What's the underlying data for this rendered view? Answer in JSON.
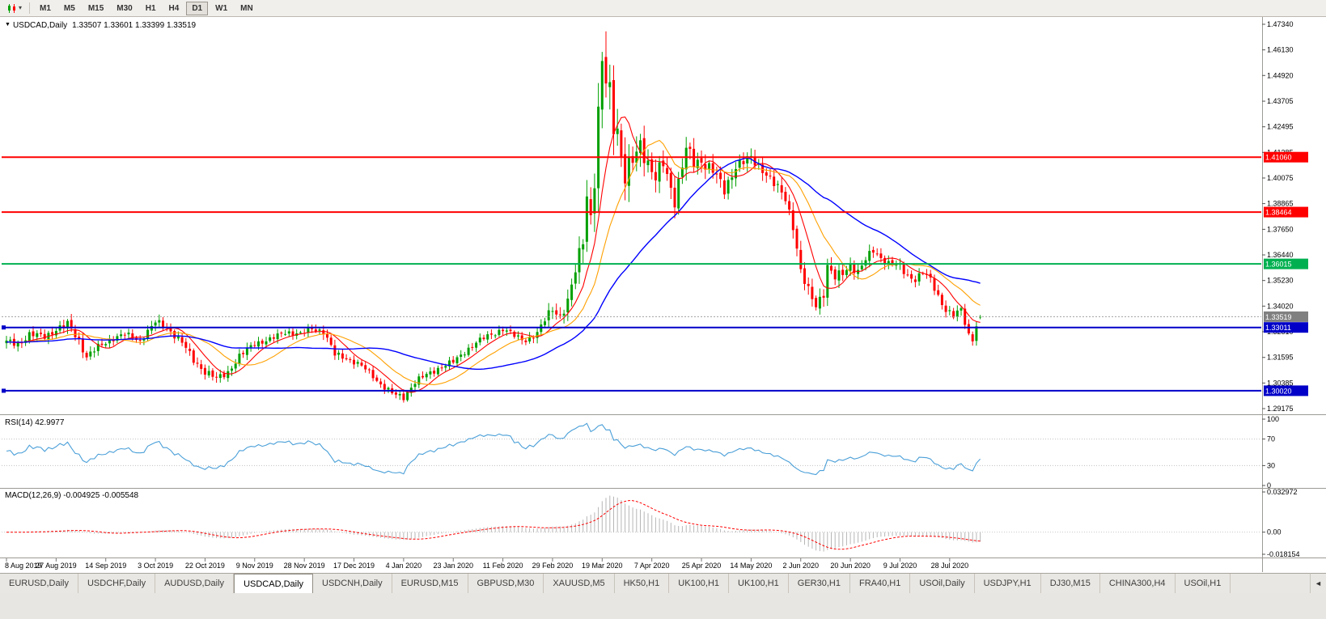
{
  "toolbar": {
    "timeframes": [
      "M1",
      "M5",
      "M15",
      "M30",
      "H1",
      "H4",
      "D1",
      "W1",
      "MN"
    ],
    "active_timeframe": "D1"
  },
  "chart_data": {
    "type": "candlestick",
    "symbol": "USDCAD",
    "timeframe": "Daily",
    "title_symbol": "USDCAD,Daily",
    "title_ohlc": "1.33507 1.33601 1.33399 1.33519",
    "candle_count": 256,
    "last_candle": [
      1.33507,
      1.33601,
      1.33399,
      1.33519
    ],
    "anchors": [
      [
        0,
        1.3232,
        0.0042
      ],
      [
        3,
        1.3222,
        0.004
      ],
      [
        6,
        1.3268,
        0.004
      ],
      [
        10,
        1.3258,
        0.0038
      ],
      [
        13,
        1.3292,
        0.0042
      ],
      [
        16,
        1.3315,
        0.0046
      ],
      [
        19,
        1.3242,
        0.0048
      ],
      [
        21,
        1.3162,
        0.0044
      ],
      [
        24,
        1.3208,
        0.0038
      ],
      [
        28,
        1.3252,
        0.0036
      ],
      [
        31,
        1.3268,
        0.0034
      ],
      [
        35,
        1.324,
        0.0036
      ],
      [
        39,
        1.3325,
        0.0044
      ],
      [
        42,
        1.3302,
        0.004
      ],
      [
        46,
        1.3228,
        0.004
      ],
      [
        49,
        1.3148,
        0.0042
      ],
      [
        52,
        1.3092,
        0.0042
      ],
      [
        55,
        1.3058,
        0.004
      ],
      [
        58,
        1.3092,
        0.004
      ],
      [
        61,
        1.3162,
        0.004
      ],
      [
        65,
        1.3228,
        0.0038
      ],
      [
        69,
        1.3242,
        0.0034
      ],
      [
        73,
        1.3282,
        0.0034
      ],
      [
        77,
        1.3268,
        0.0032
      ],
      [
        80,
        1.3298,
        0.0036
      ],
      [
        83,
        1.3282,
        0.004
      ],
      [
        86,
        1.3172,
        0.0042
      ],
      [
        89,
        1.3158,
        0.0034
      ],
      [
        92,
        1.3128,
        0.0032
      ],
      [
        95,
        1.3092,
        0.003
      ],
      [
        98,
        1.3032,
        0.0032
      ],
      [
        101,
        1.2988,
        0.0034
      ],
      [
        104,
        1.2972,
        0.0034
      ],
      [
        107,
        1.3042,
        0.0036
      ],
      [
        110,
        1.3078,
        0.0034
      ],
      [
        113,
        1.3108,
        0.0032
      ],
      [
        117,
        1.3138,
        0.0032
      ],
      [
        120,
        1.3188,
        0.0034
      ],
      [
        123,
        1.3228,
        0.0032
      ],
      [
        126,
        1.3262,
        0.0032
      ],
      [
        130,
        1.3292,
        0.0034
      ],
      [
        133,
        1.3262,
        0.0032
      ],
      [
        136,
        1.3242,
        0.0034
      ],
      [
        139,
        1.3268,
        0.0042
      ],
      [
        141,
        1.3338,
        0.0052
      ],
      [
        143,
        1.3398,
        0.0058
      ],
      [
        145,
        1.3352,
        0.0062
      ],
      [
        147,
        1.3412,
        0.0068
      ],
      [
        149,
        1.3572,
        0.0085
      ],
      [
        151,
        1.3738,
        0.0105
      ],
      [
        152,
        1.3932,
        0.0125
      ],
      [
        153,
        1.3818,
        0.0135
      ],
      [
        154,
        1.3988,
        0.015
      ],
      [
        155,
        1.4262,
        0.0185
      ],
      [
        156,
        1.4552,
        0.0235
      ],
      [
        157,
        1.4468,
        0.02
      ],
      [
        158,
        1.4432,
        0.018
      ],
      [
        159,
        1.4292,
        0.0165
      ],
      [
        160,
        1.4238,
        0.015
      ],
      [
        161,
        1.4102,
        0.014
      ],
      [
        162,
        1.3998,
        0.0135
      ],
      [
        164,
        1.4088,
        0.012
      ],
      [
        166,
        1.4178,
        0.011
      ],
      [
        168,
        1.4078,
        0.01
      ],
      [
        170,
        1.3998,
        0.0095
      ],
      [
        172,
        1.4078,
        0.009
      ],
      [
        175,
        1.3908,
        0.0088
      ],
      [
        178,
        1.4142,
        0.0088
      ],
      [
        180,
        1.4078,
        0.0082
      ],
      [
        182,
        1.4092,
        0.0078
      ],
      [
        185,
        1.4042,
        0.0072
      ],
      [
        188,
        1.3948,
        0.007
      ],
      [
        191,
        1.4068,
        0.0068
      ],
      [
        195,
        1.4098,
        0.0064
      ],
      [
        198,
        1.4052,
        0.006
      ],
      [
        201,
        1.3978,
        0.0058
      ],
      [
        204,
        1.3912,
        0.006
      ],
      [
        206,
        1.3788,
        0.0064
      ],
      [
        208,
        1.3562,
        0.007
      ],
      [
        210,
        1.3468,
        0.0066
      ],
      [
        212,
        1.3408,
        0.0062
      ],
      [
        214,
        1.3472,
        0.0068
      ],
      [
        215,
        1.3588,
        0.0072
      ],
      [
        217,
        1.3532,
        0.006
      ],
      [
        219,
        1.3558,
        0.0054
      ],
      [
        221,
        1.3598,
        0.0052
      ],
      [
        223,
        1.3562,
        0.0048
      ],
      [
        225,
        1.3618,
        0.0048
      ],
      [
        227,
        1.3668,
        0.0048
      ],
      [
        229,
        1.3632,
        0.0044
      ],
      [
        231,
        1.3602,
        0.0042
      ],
      [
        234,
        1.3588,
        0.0042
      ],
      [
        236,
        1.3548,
        0.0042
      ],
      [
        238,
        1.3528,
        0.004
      ],
      [
        240,
        1.3558,
        0.004
      ],
      [
        242,
        1.3528,
        0.004
      ],
      [
        244,
        1.3452,
        0.0042
      ],
      [
        246,
        1.3382,
        0.0042
      ],
      [
        248,
        1.3352,
        0.004
      ],
      [
        250,
        1.3388,
        0.0038
      ],
      [
        252,
        1.3268,
        0.0042
      ],
      [
        253,
        1.3248,
        0.004
      ],
      [
        254,
        1.3308,
        0.0036
      ],
      [
        255,
        1.3352,
        0.002
      ]
    ],
    "dates": [
      "8 Aug 2019",
      "27 Aug 2019",
      "14 Sep 2019",
      "3 Oct 2019",
      "22 Oct 2019",
      "9 Nov 2019",
      "28 Nov 2019",
      "17 Dec 2019",
      "4 Jan 2020",
      "23 Jan 2020",
      "11 Feb 2020",
      "29 Feb 2020",
      "19 Mar 2020",
      "7 Apr 2020",
      "25 Apr 2020",
      "14 May 2020",
      "2 Jun 2020",
      "20 Jun 2020",
      "9 Jul 2020",
      "28 Jul 2020"
    ],
    "date_step": 13,
    "price_scale_labels": [
      "1.47340",
      "1.46130",
      "1.44920",
      "1.43705",
      "1.42495",
      "1.41285",
      "1.40075",
      "1.38865",
      "1.37650",
      "1.36440",
      "1.35230",
      "1.34020",
      "1.32810",
      "1.31595",
      "1.30385",
      "1.29175"
    ],
    "price_scale_top": 1.4734,
    "price_scale_bottom": 1.29175,
    "levels": [
      {
        "price": 1.4106,
        "label": "1.41060",
        "color": "#ff0000",
        "width": 2,
        "handles": false
      },
      {
        "price": 1.38464,
        "label": "1.38464",
        "color": "#ff0000",
        "width": 2,
        "handles": false
      },
      {
        "price": 1.36015,
        "label": "1.36015",
        "color": "#00b050",
        "width": 2,
        "handles": false
      },
      {
        "price": 1.33011,
        "label": "1.33011",
        "color": "#0000c8",
        "width": 2,
        "handles": true
      },
      {
        "price": 1.3002,
        "label": "1.30020",
        "color": "#0000c8",
        "width": 2,
        "handles": true
      }
    ],
    "current_price": {
      "value": 1.33519,
      "label": "1.33519",
      "tag_color": "#808080"
    },
    "ma_periods": [
      8,
      17,
      40
    ],
    "colors": {
      "up": "#00a000",
      "down": "#ff0000",
      "ma_fast": "#ff0000",
      "ma_mid": "#ffa000",
      "ma_slow": "#0000ff",
      "rsi": "#4a9fd8",
      "macd_hist": "#b6b6b6",
      "macd_signal": "#ff0000"
    },
    "indicators": {
      "rsi": {
        "label": "RSI(14) 42.9977",
        "period": 14,
        "levels": [
          "100",
          "70",
          "30",
          "0"
        ],
        "guides": [
          70,
          30
        ]
      },
      "macd": {
        "label": "MACD(12,26,9) -0.004925 -0.005548",
        "scale": [
          "0.032972",
          "0.00",
          "-0.018154"
        ],
        "max": 0.032972,
        "min": -0.018154
      }
    }
  },
  "tabs": {
    "items": [
      "EURUSD,Daily",
      "USDCHF,Daily",
      "AUDUSD,Daily",
      "USDCAD,Daily",
      "USDCNH,Daily",
      "EURUSD,M15",
      "GBPUSD,M30",
      "XAUUSD,M5",
      "HK50,H1",
      "UK100,H1",
      "UK100,H1",
      "GER30,H1",
      "FRA40,H1",
      "USOil,Daily",
      "USDJPY,H1",
      "DJ30,M15",
      "CHINA300,H4",
      "USOil,H1"
    ],
    "active_index": 3,
    "scroll_left_arrow": "◄"
  }
}
